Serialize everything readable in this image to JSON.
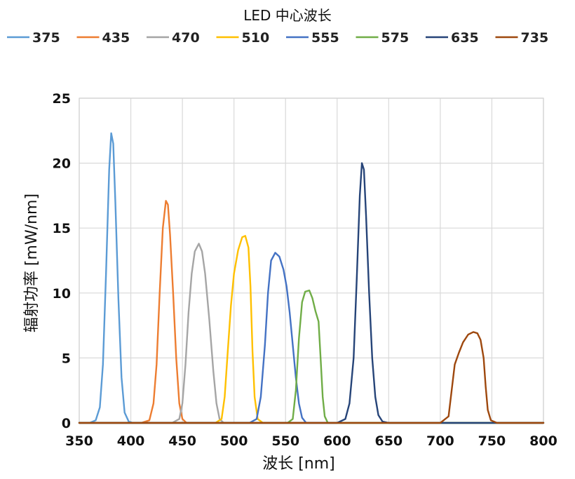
{
  "chart_data": {
    "type": "line",
    "legend_title": "LED 中心波长",
    "legend_position": "top",
    "xlabel": "波长 [nm]",
    "ylabel": "辐射功率 [mW/nm]",
    "xlim": [
      350,
      800
    ],
    "ylim": [
      0,
      25
    ],
    "xticks": [
      "350",
      "400",
      "450",
      "500",
      "550",
      "600",
      "650",
      "700",
      "750",
      "800"
    ],
    "yticks": [
      "0",
      "5",
      "10",
      "15",
      "20",
      "25"
    ],
    "grid": true,
    "series": [
      {
        "name": "375",
        "color": "#5b9bd5",
        "x": [
          350,
          360,
          366,
          370,
          373,
          376,
          379,
          381,
          383,
          385,
          388,
          391,
          394,
          398,
          402,
          410,
          800
        ],
        "y": [
          0,
          0,
          0.2,
          1.2,
          4.5,
          11.5,
          19.5,
          22.3,
          21.5,
          17,
          9.5,
          3.5,
          0.8,
          0.1,
          0,
          0,
          0
        ]
      },
      {
        "name": "435",
        "color": "#ed7d31",
        "x": [
          350,
          410,
          418,
          422,
          425,
          428,
          431,
          434,
          436,
          438,
          441,
          444,
          447,
          450,
          454,
          460,
          800
        ],
        "y": [
          0,
          0,
          0.2,
          1.5,
          4.5,
          10,
          15,
          17.1,
          16.8,
          14.5,
          10,
          5,
          1.5,
          0.3,
          0,
          0,
          0
        ]
      },
      {
        "name": "470",
        "color": "#a5a5a5",
        "x": [
          350,
          440,
          447,
          450,
          453,
          456,
          459,
          462,
          466,
          469,
          472,
          476,
          480,
          483,
          486,
          490,
          800
        ],
        "y": [
          0,
          0,
          0.3,
          1.5,
          4.5,
          8.5,
          11.5,
          13.2,
          13.8,
          13.2,
          11.5,
          8,
          4,
          1.5,
          0.3,
          0,
          0
        ]
      },
      {
        "name": "510",
        "color": "#ffc000",
        "x": [
          350,
          482,
          488,
          491,
          494,
          497,
          500,
          504,
          508,
          511,
          514,
          516,
          518,
          520,
          523,
          528,
          800
        ],
        "y": [
          0,
          0,
          0.3,
          2,
          5.5,
          9,
          11.5,
          13.3,
          14.3,
          14.4,
          13.5,
          10.5,
          5.5,
          2,
          0.3,
          0,
          0
        ]
      },
      {
        "name": "555",
        "color": "#4472c4",
        "x": [
          350,
          515,
          522,
          526,
          530,
          533,
          536,
          540,
          544,
          548,
          551,
          554,
          557,
          560,
          563,
          566,
          570,
          800
        ],
        "y": [
          0,
          0,
          0.3,
          2,
          6,
          10,
          12.5,
          13.1,
          12.8,
          11.8,
          10.5,
          8.5,
          6,
          3.5,
          1.5,
          0.4,
          0,
          0
        ]
      },
      {
        "name": "575",
        "color": "#70ad47",
        "x": [
          350,
          552,
          557,
          560,
          563,
          566,
          569,
          573,
          576,
          579,
          582,
          584,
          586,
          588,
          591,
          800
        ],
        "y": [
          0,
          0,
          0.3,
          2.5,
          6.5,
          9.3,
          10.1,
          10.2,
          9.6,
          8.6,
          7.8,
          5,
          2,
          0.5,
          0,
          0
        ]
      },
      {
        "name": "635",
        "color": "#264478",
        "x": [
          350,
          600,
          608,
          612,
          616,
          619,
          622,
          624,
          626,
          628,
          631,
          634,
          637,
          640,
          644,
          650,
          800
        ],
        "y": [
          0,
          0,
          0.3,
          1.5,
          5,
          11,
          17.5,
          20,
          19.5,
          16,
          10,
          5,
          2,
          0.6,
          0.1,
          0,
          0
        ]
      },
      {
        "name": "735",
        "color": "#9e480e",
        "x": [
          350,
          700,
          708,
          711,
          714,
          718,
          722,
          727,
          732,
          736,
          739,
          742,
          744,
          746,
          749,
          755,
          800
        ],
        "y": [
          0,
          0,
          0.5,
          2.5,
          4.5,
          5.4,
          6.2,
          6.8,
          7.0,
          6.9,
          6.4,
          5,
          2.8,
          1,
          0.2,
          0,
          0
        ]
      }
    ]
  }
}
